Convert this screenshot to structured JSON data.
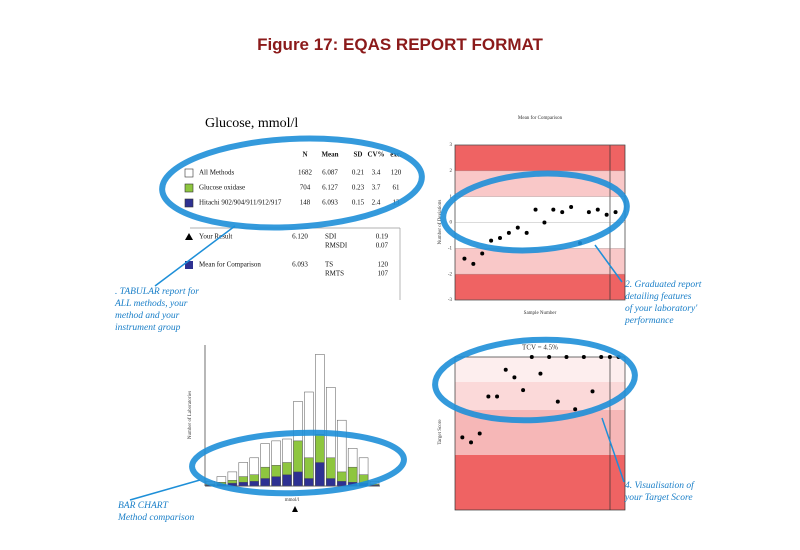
{
  "title": "Figure 17: EQAS REPORT FORMAT",
  "table": {
    "title": "Glucose, mmol/l",
    "columns": [
      "N",
      "Mean",
      "SD",
      "CV%",
      "exc."
    ],
    "rows": [
      {
        "label": "All Methods",
        "color": "#ffffff",
        "cells": [
          "1682",
          "6.087",
          "0.21",
          "3.4",
          "120"
        ]
      },
      {
        "label": "Glucose oxidase",
        "color": "#8ec63f",
        "cells": [
          "704",
          "6.127",
          "0.23",
          "3.7",
          "61"
        ]
      },
      {
        "label": "Hitachi 902/904/911/912/917",
        "color": "#2e3192",
        "cells": [
          "148",
          "6.093",
          "0.15",
          "2.4",
          "13"
        ]
      }
    ],
    "result_rows": [
      {
        "label": "Your Result",
        "value": "6.120",
        "stats": [
          [
            "SDI",
            "0.19"
          ],
          [
            "RMSDI",
            "0.07"
          ]
        ]
      },
      {
        "label": "Mean for Comparison",
        "value": "6.093",
        "stats": [
          [
            "TS",
            "120"
          ],
          [
            "RMTS",
            "107"
          ]
        ]
      }
    ]
  },
  "annotations": [
    {
      "lines": [
        ". TABULAR report for",
        "ALL methods, your",
        "method and your",
        "instrument group"
      ]
    },
    {
      "lines": [
        "2. Graduated report",
        "detailing features",
        "of your laboratory'",
        "performance"
      ]
    },
    {
      "lines": [
        "BAR CHART",
        "Method comparison"
      ]
    },
    {
      "lines": [
        "4. Visualisation of",
        "your Target Score"
      ]
    }
  ],
  "deviation_chart": {
    "title": "Mean for Comparison",
    "y_label": "Number of Deviations",
    "x_label": "Sample Number",
    "ylim": [
      -3,
      3
    ],
    "yticks": [
      -3,
      -2,
      -1,
      0,
      1,
      2,
      3
    ],
    "points": [
      -1.4,
      -1.6,
      -1.2,
      -0.7,
      -0.6,
      -0.4,
      -0.2,
      -0.4,
      0.5,
      0,
      0.5,
      0.4,
      0.6,
      -0.8,
      0.4,
      0.5,
      0.3,
      0.4
    ]
  },
  "histogram": {
    "y_label": "Number of Laboratories",
    "x_label": "mmol/l",
    "ylim": [
      0,
      150
    ],
    "series": [
      {
        "color": "#ffffff",
        "values": [
          5,
          10,
          15,
          25,
          30,
          45,
          48,
          50,
          90,
          100,
          140,
          105,
          70,
          40,
          30,
          5
        ]
      },
      {
        "color": "#8ec63f",
        "values": [
          2,
          4,
          6,
          10,
          12,
          20,
          22,
          25,
          48,
          30,
          55,
          30,
          15,
          20,
          12,
          2
        ]
      },
      {
        "color": "#2e3192",
        "values": [
          1,
          2,
          3,
          4,
          5,
          8,
          10,
          12,
          15,
          8,
          25,
          8,
          5,
          4,
          3,
          1
        ]
      }
    ]
  },
  "target_chart": {
    "title": "TCV = 4.5%",
    "y_label": "Target Score",
    "ylim": [
      0,
      120
    ],
    "points": [
      57,
      53,
      60,
      89,
      89,
      110,
      104,
      94,
      120,
      107,
      120,
      85,
      120,
      79,
      120,
      93,
      120,
      120,
      120
    ]
  }
}
